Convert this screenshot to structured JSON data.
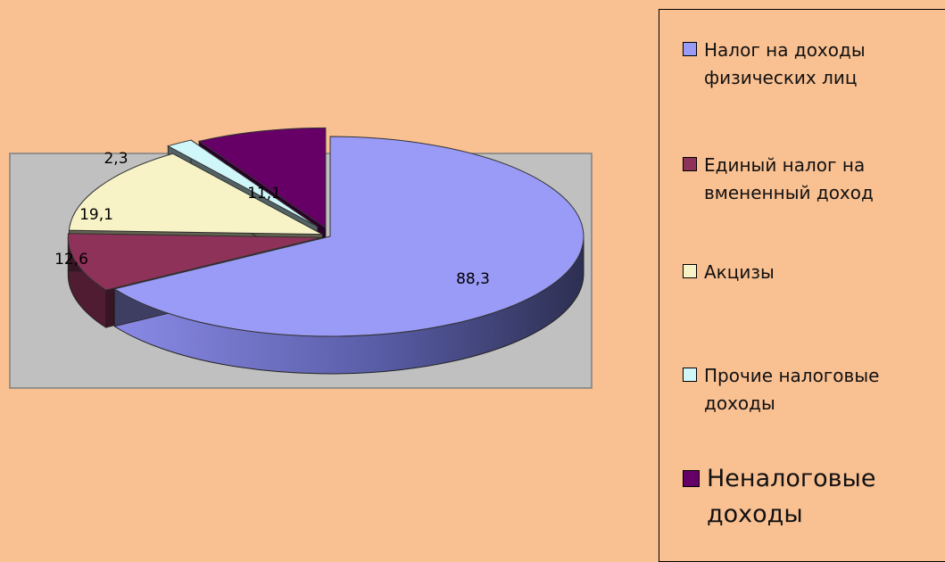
{
  "chart_data": {
    "type": "pie",
    "title": "",
    "categories": [
      "Налог на доходы физических лиц",
      "Единый налог на вмененный доход",
      "Акцизы",
      "Прочие налоговые доходы",
      "Неналоговые доходы"
    ],
    "values": [
      88.3,
      12.6,
      19.1,
      2.3,
      11.1
    ],
    "value_labels": [
      "88,3",
      "12,6",
      "19,1",
      "2,3",
      "11,1"
    ],
    "colors": [
      "#9a9af7",
      "#8f3259",
      "#f7f3c6",
      "#cff6f9",
      "#660066"
    ],
    "legend_position": "right",
    "three_d": true,
    "exploded": true
  }
}
